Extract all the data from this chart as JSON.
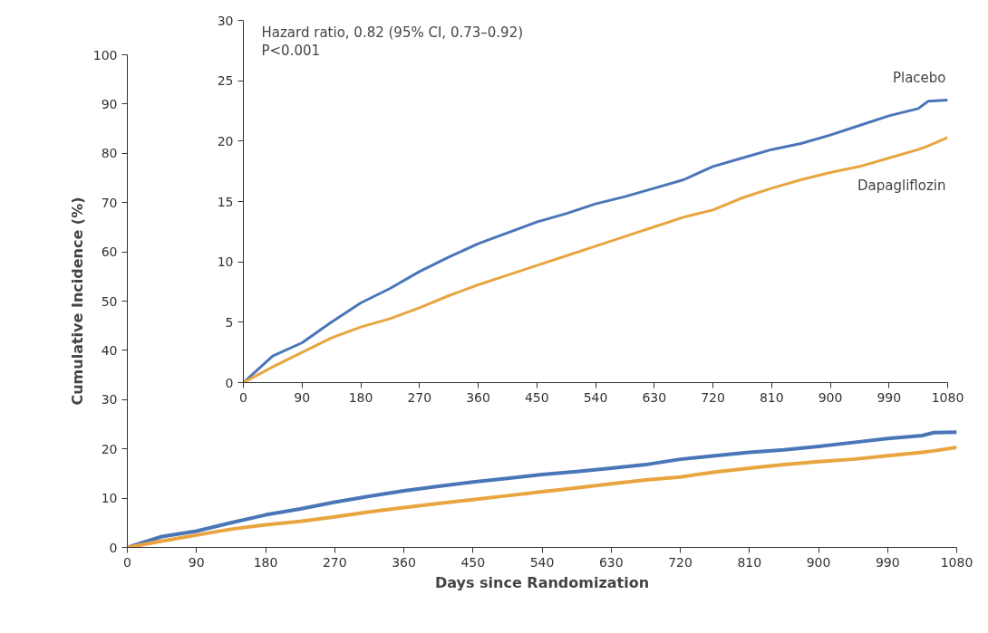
{
  "chart_data": [
    {
      "type": "line",
      "xlabel": "Days since Randomization",
      "ylabel": "Cumulative Incidence (%)",
      "xlim": [
        0,
        1080
      ],
      "ylim": [
        0,
        100
      ],
      "xticks": [
        0,
        90,
        180,
        270,
        360,
        450,
        540,
        630,
        720,
        810,
        900,
        990,
        1080
      ],
      "yticks": [
        0,
        10,
        20,
        30,
        40,
        50,
        60,
        70,
        80,
        90,
        100
      ],
      "grid": false,
      "line_style": "solid",
      "x": [
        0,
        45,
        90,
        135,
        180,
        225,
        270,
        315,
        360,
        405,
        450,
        495,
        540,
        585,
        630,
        675,
        720,
        765,
        810,
        855,
        900,
        945,
        990,
        1035,
        1050,
        1080
      ],
      "series": [
        {
          "color": "#4a76b8",
          "values": [
            0,
            2.2,
            3.3,
            5,
            6.6,
            7.8,
            9.2,
            10.4,
            11.5,
            12.4,
            13.3,
            14,
            14.8,
            15.4,
            16.1,
            16.8,
            17.9,
            18.6,
            19.3,
            19.8,
            20.5,
            21.3,
            22.1,
            22.7,
            23.3,
            23.4
          ]
        },
        {
          "color": "#e8a540",
          "values": [
            0,
            1.3,
            2.5,
            3.7,
            4.6,
            5.3,
            6.2,
            7.2,
            8.1,
            8.9,
            9.7,
            10.5,
            11.3,
            12.1,
            12.9,
            13.7,
            14.3,
            15.3,
            16.1,
            16.8,
            17.4,
            17.9,
            18.6,
            19.3,
            19.6,
            20.3
          ]
        }
      ]
    },
    {
      "type": "line",
      "xlim": [
        0,
        1080
      ],
      "ylim": [
        0,
        30
      ],
      "xticks": [
        0,
        90,
        180,
        270,
        360,
        450,
        540,
        630,
        720,
        810,
        900,
        990,
        1080
      ],
      "yticks": [
        0,
        5,
        10,
        15,
        20,
        25,
        30
      ],
      "grid": false,
      "line_style": "solid",
      "annotations": [
        "Hazard ratio, 0.82 (95% CI, 0.73–0.92)",
        "P<0.001"
      ],
      "x": [
        0,
        45,
        90,
        135,
        180,
        225,
        270,
        315,
        360,
        405,
        450,
        495,
        540,
        585,
        630,
        675,
        720,
        765,
        810,
        855,
        900,
        945,
        990,
        1035,
        1050,
        1080
      ],
      "series": [
        {
          "name": "Placebo",
          "color": "#4a76b8",
          "values": [
            0,
            2.2,
            3.3,
            5,
            6.6,
            7.8,
            9.2,
            10.4,
            11.5,
            12.4,
            13.3,
            14,
            14.8,
            15.4,
            16.1,
            16.8,
            17.9,
            18.6,
            19.3,
            19.8,
            20.5,
            21.3,
            22.1,
            22.7,
            23.3,
            23.4
          ]
        },
        {
          "name": "Dapagliflozin",
          "color": "#e8a540",
          "values": [
            0,
            1.3,
            2.5,
            3.7,
            4.6,
            5.3,
            6.2,
            7.2,
            8.1,
            8.9,
            9.7,
            10.5,
            11.3,
            12.1,
            12.9,
            13.7,
            14.3,
            15.3,
            16.1,
            16.8,
            17.4,
            17.9,
            18.6,
            19.3,
            19.6,
            20.3
          ]
        }
      ]
    }
  ]
}
